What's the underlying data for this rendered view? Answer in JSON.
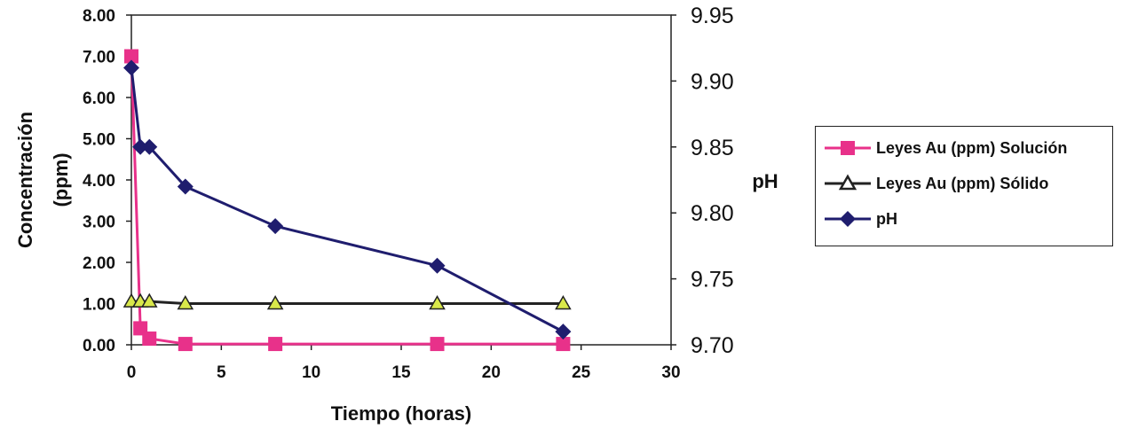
{
  "chart_data": {
    "type": "line",
    "xlabel": "Tiempo (horas)",
    "ylabel": "Concentración (ppm)",
    "ylabel_lines": [
      "Concentración",
      "(ppm)"
    ],
    "y2label": "pH",
    "xlim": [
      0,
      30
    ],
    "ylim": [
      0,
      8
    ],
    "y2lim": [
      9.7,
      9.95
    ],
    "xticks": [
      "0",
      "5",
      "10",
      "15",
      "20",
      "25",
      "30"
    ],
    "yticks": [
      "0.00",
      "1.00",
      "2.00",
      "3.00",
      "4.00",
      "5.00",
      "6.00",
      "7.00",
      "8.00"
    ],
    "y2ticks": [
      "9.70",
      "9.75",
      "9.80",
      "9.85",
      "9.90",
      "9.95"
    ],
    "grid": false,
    "legend_position": "right",
    "series": [
      {
        "name": "Leyes Au (ppm) Solución",
        "axis": "left",
        "color": "#e8318a",
        "marker": "square",
        "x": [
          0,
          0.5,
          1,
          3,
          8,
          17,
          24
        ],
        "y": [
          7.0,
          0.4,
          0.15,
          0.02,
          0.02,
          0.02,
          0.02
        ]
      },
      {
        "name": "Leyes Au (ppm) Sólido",
        "axis": "left",
        "color": "#222222",
        "marker": "triangle",
        "marker_fill": "#d9e84a",
        "x": [
          0,
          0.5,
          1,
          3,
          8,
          17,
          24
        ],
        "y": [
          1.05,
          1.05,
          1.05,
          1.0,
          1.0,
          1.0,
          1.0
        ]
      },
      {
        "name": "pH",
        "axis": "right",
        "color": "#1f1d6e",
        "marker": "diamond",
        "x": [
          0,
          0.5,
          1,
          3,
          8,
          17,
          24
        ],
        "y": [
          9.91,
          9.85,
          9.85,
          9.82,
          9.79,
          9.76,
          9.71
        ]
      }
    ]
  }
}
